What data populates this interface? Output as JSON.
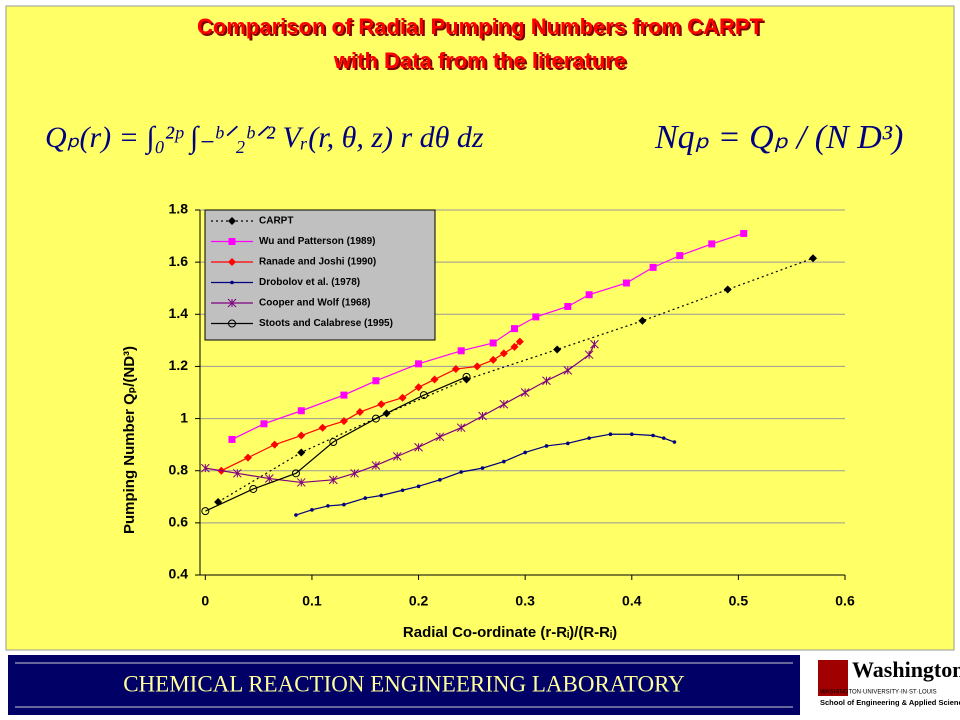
{
  "chart_data": {
    "type": "line",
    "title": [
      "Comparison of Radial Pumping Numbers from CARPT",
      "with Data from the literature"
    ],
    "formulas": [
      "Qₚ(r) = ∫₀²ᵖ ∫₋ᵇᐟ₂ᵇᐟ² Vᵣ(r, θ, z) r dθ dz",
      "Nqₚ = Qₚ / (N D³)"
    ],
    "x_label": "Radial Co-ordinate  (r-Rᵢ)/(R-Rᵢ)",
    "y_label": "Pumping Number Qₚ/(ND³)",
    "xlim": [
      -0.005,
      0.6
    ],
    "ylim": [
      0.4,
      1.8
    ],
    "xticks": [
      0,
      0.1,
      0.2,
      0.3,
      0.4,
      0.5,
      0.6
    ],
    "yticks": [
      0.4,
      0.6,
      0.8,
      1,
      1.2,
      1.4,
      1.6,
      1.8
    ],
    "grid": true,
    "legend": "top-left",
    "series": [
      {
        "name": "CARPT",
        "color": "#000000",
        "marker": "diamond",
        "dash": "dotted",
        "x": [
          0.012,
          0.09,
          0.17,
          0.245,
          0.33,
          0.41,
          0.49,
          0.57
        ],
        "values": [
          0.68,
          0.87,
          1.02,
          1.15,
          1.265,
          1.375,
          1.495,
          1.615
        ]
      },
      {
        "name": "Wu and Patterson (1989)",
        "color": "#ff00ff",
        "marker": "square",
        "dash": "solid",
        "x": [
          0.025,
          0.055,
          0.09,
          0.13,
          0.16,
          0.2,
          0.24,
          0.27,
          0.29,
          0.31,
          0.34,
          0.36,
          0.395,
          0.42,
          0.445,
          0.475,
          0.505
        ],
        "values": [
          0.92,
          0.98,
          1.03,
          1.09,
          1.145,
          1.21,
          1.26,
          1.29,
          1.345,
          1.39,
          1.43,
          1.475,
          1.52,
          1.58,
          1.625,
          1.67,
          1.71
        ]
      },
      {
        "name": "Ranade and Joshi (1990)",
        "color": "#ff0000",
        "marker": "diamond",
        "dash": "solid",
        "x": [
          0.015,
          0.04,
          0.065,
          0.09,
          0.11,
          0.13,
          0.145,
          0.165,
          0.185,
          0.2,
          0.215,
          0.235,
          0.255,
          0.27,
          0.28,
          0.29,
          0.295
        ],
        "values": [
          0.8,
          0.85,
          0.9,
          0.935,
          0.965,
          0.99,
          1.025,
          1.055,
          1.08,
          1.12,
          1.15,
          1.19,
          1.2,
          1.225,
          1.25,
          1.275,
          1.295
        ]
      },
      {
        "name": "Drobolov et al. (1978)",
        "color": "#000080",
        "marker": "dot",
        "dash": "solid",
        "x": [
          0.085,
          0.1,
          0.115,
          0.13,
          0.15,
          0.165,
          0.185,
          0.2,
          0.22,
          0.24,
          0.26,
          0.28,
          0.3,
          0.32,
          0.34,
          0.36,
          0.38,
          0.4,
          0.42,
          0.43,
          0.44
        ],
        "values": [
          0.63,
          0.65,
          0.665,
          0.67,
          0.695,
          0.705,
          0.725,
          0.74,
          0.765,
          0.795,
          0.81,
          0.835,
          0.87,
          0.895,
          0.905,
          0.925,
          0.94,
          0.94,
          0.935,
          0.925,
          0.91
        ]
      },
      {
        "name": "Cooper and Wolf (1968)",
        "color": "#800080",
        "marker": "star",
        "dash": "solid",
        "x": [
          0,
          0.03,
          0.06,
          0.09,
          0.12,
          0.14,
          0.16,
          0.18,
          0.2,
          0.22,
          0.24,
          0.26,
          0.28,
          0.3,
          0.32,
          0.34,
          0.36,
          0.365
        ],
        "values": [
          0.81,
          0.79,
          0.77,
          0.755,
          0.765,
          0.79,
          0.82,
          0.855,
          0.89,
          0.93,
          0.965,
          1.01,
          1.055,
          1.1,
          1.145,
          1.185,
          1.245,
          1.285
        ]
      },
      {
        "name": "Stoots and Calabrese (1995)",
        "color": "#000000",
        "marker": "circle",
        "dash": "solid",
        "x": [
          0,
          0.045,
          0.085,
          0.12,
          0.16,
          0.205,
          0.245
        ],
        "values": [
          0.645,
          0.73,
          0.79,
          0.91,
          1.0,
          1.09,
          1.16
        ]
      }
    ],
    "footer": {
      "lab": "CHEMICAL  REACTION  ENGINEERING  LABORATORY",
      "logo": [
        "Washington",
        "WASHINGTON·UNIVERSITY·IN·ST·LOUIS",
        "School of Engineering & Applied Science"
      ]
    }
  }
}
